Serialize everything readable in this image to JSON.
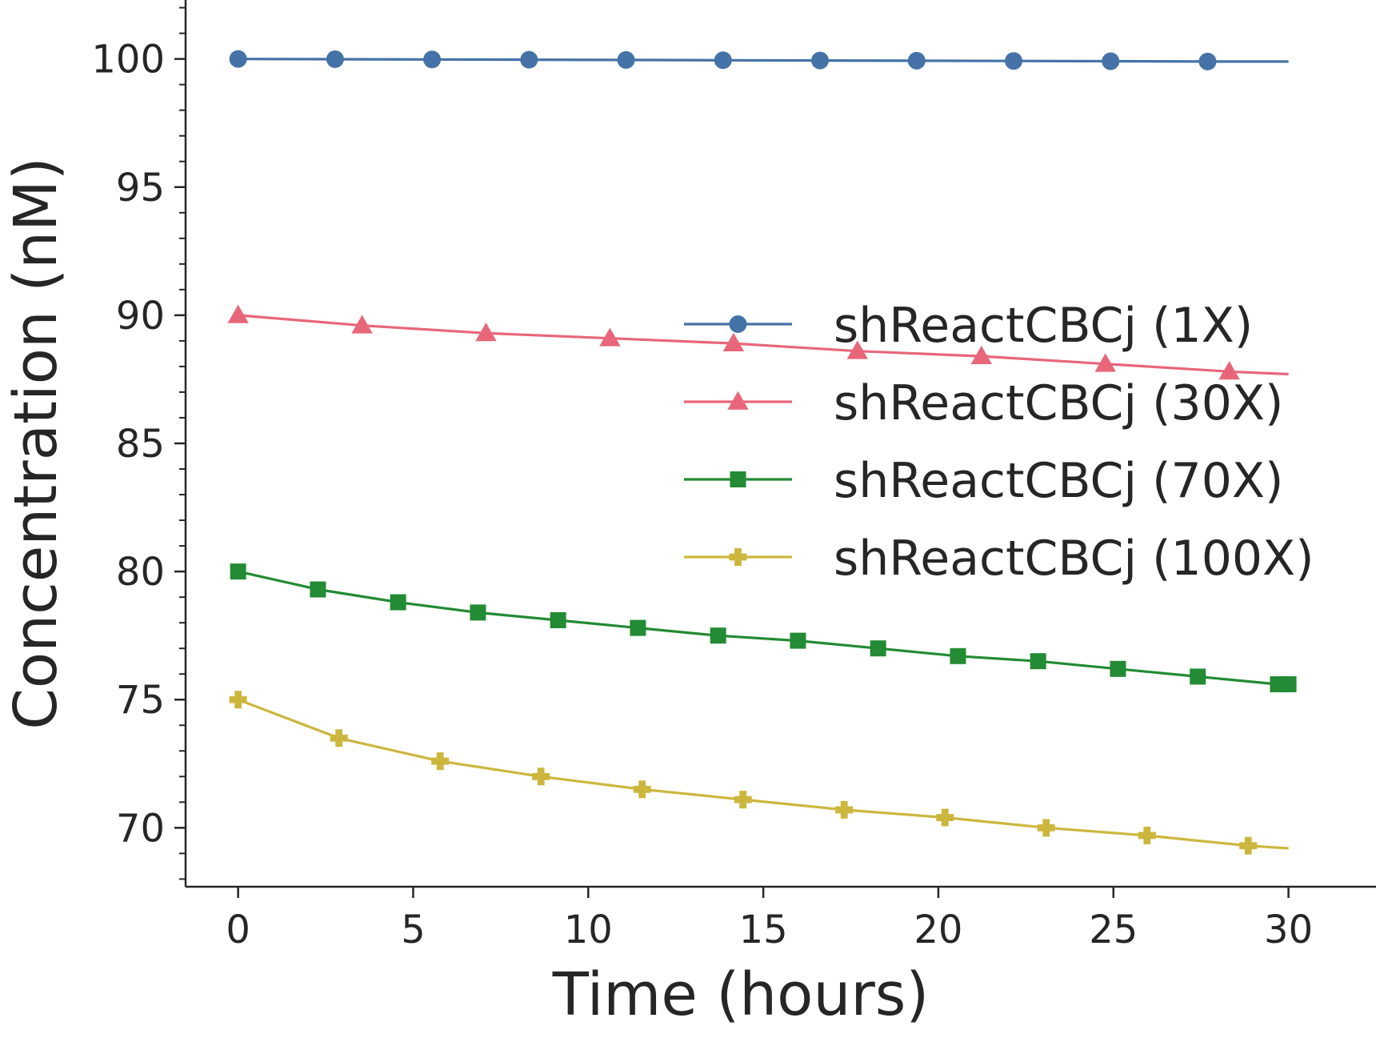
{
  "chart_data": {
    "type": "line",
    "title": "",
    "xlabel": "Time (hours)",
    "ylabel": "Concentration (nM)",
    "xlim": [
      -1.5,
      32.5
    ],
    "ylim": [
      67.7,
      102.3
    ],
    "x_ticks": [
      0,
      5,
      10,
      15,
      20,
      25,
      30
    ],
    "y_ticks": [
      70,
      75,
      80,
      85,
      90,
      95,
      100
    ],
    "y_minor_step": 1,
    "grid": false,
    "legend_position": "center-right",
    "series": [
      {
        "name": "shReactCBCj (1X)",
        "color": "#4572a7",
        "marker": "circle",
        "x": [
          0,
          2.77,
          5.54,
          8.31,
          11.08,
          13.85,
          16.62,
          19.38,
          22.15,
          24.92,
          27.69,
          30
        ],
        "y": [
          100.0,
          99.99,
          99.98,
          99.97,
          99.96,
          99.95,
          99.94,
          99.93,
          99.92,
          99.91,
          99.9,
          99.9
        ]
      },
      {
        "name": "shReactCBCj (30X)",
        "color": "#e8667a",
        "marker": "triangle",
        "x": [
          0,
          3.54,
          7.08,
          10.62,
          14.15,
          17.69,
          21.23,
          24.77,
          28.31,
          30
        ],
        "y": [
          90.0,
          89.6,
          89.3,
          89.1,
          88.9,
          88.6,
          88.4,
          88.1,
          87.8,
          87.7
        ]
      },
      {
        "name": "shReactCBCj (70X)",
        "color": "#228b33",
        "marker": "square",
        "x": [
          0,
          2.28,
          4.57,
          6.85,
          9.14,
          11.42,
          13.71,
          15.99,
          18.28,
          20.56,
          22.85,
          25.13,
          27.41,
          29.7,
          30
        ],
        "y": [
          80.0,
          79.3,
          78.8,
          78.4,
          78.1,
          77.8,
          77.5,
          77.3,
          77.0,
          76.7,
          76.5,
          76.2,
          75.9,
          75.6,
          75.6
        ]
      },
      {
        "name": "shReactCBCj (100X)",
        "color": "#cdb63d",
        "marker": "plus",
        "x": [
          0,
          2.88,
          5.77,
          8.65,
          11.54,
          14.42,
          17.31,
          20.19,
          23.08,
          25.96,
          28.85,
          30
        ],
        "y": [
          75.0,
          73.5,
          72.6,
          72.0,
          71.5,
          71.1,
          70.7,
          70.4,
          70.0,
          69.7,
          69.3,
          69.2
        ]
      }
    ]
  }
}
